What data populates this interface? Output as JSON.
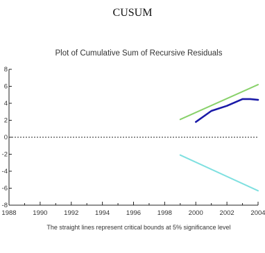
{
  "heading": "CUSUM",
  "chart_data": {
    "type": "line",
    "title": "Plot of Cumulative Sum of Recursive Residuals",
    "caption": "The straight lines represent critical bounds at 5% significance level",
    "xlim": [
      1988,
      2004
    ],
    "ylim": [
      -8,
      8
    ],
    "x_ticks": [
      "1988",
      "1990",
      "1992",
      "1994",
      "1996",
      "1998",
      "2000",
      "2002",
      "2004"
    ],
    "y_ticks": [
      "8",
      "6",
      "4",
      "2",
      "0",
      "-2",
      "-4",
      "-6",
      "-8"
    ],
    "zero_line": "dashed",
    "series": [
      {
        "color": "#1a1aa8",
        "points": [
          [
            2000,
            1.8
          ],
          [
            2001,
            3.1
          ],
          [
            2002,
            3.7
          ],
          [
            2003,
            4.5
          ],
          [
            2003.5,
            4.5
          ],
          [
            2004,
            4.4
          ]
        ]
      },
      {
        "color": "#88d16a",
        "points": [
          [
            1999,
            2.1
          ],
          [
            2004,
            6.2
          ]
        ]
      },
      {
        "color": "#7fe0e0",
        "points": [
          [
            1999,
            -2.1
          ],
          [
            2004,
            -6.3
          ]
        ]
      }
    ]
  }
}
